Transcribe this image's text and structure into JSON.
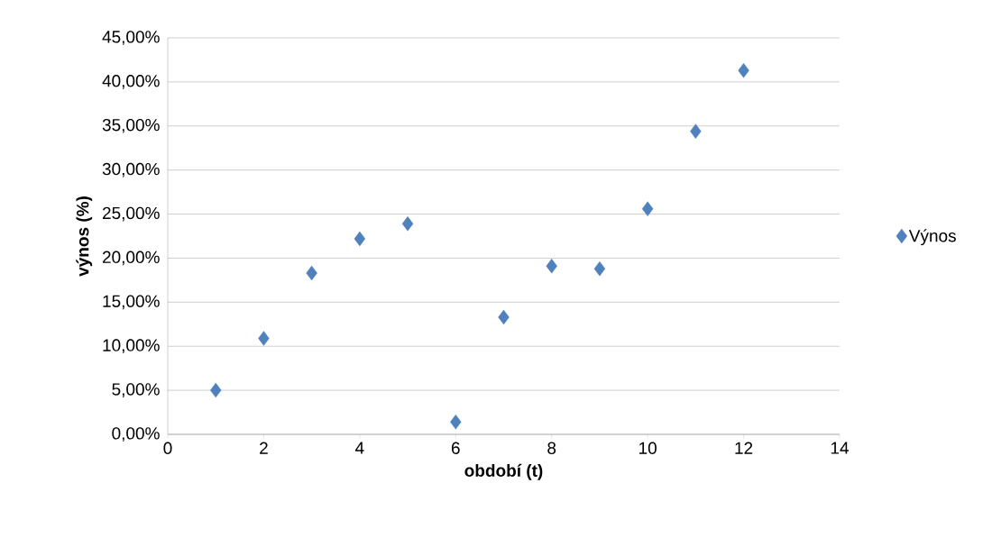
{
  "chart_data": {
    "type": "scatter",
    "xlabel": "období (t)",
    "ylabel": "výnos (%)",
    "x": [
      1,
      2,
      3,
      4,
      5,
      6,
      7,
      8,
      9,
      10,
      11,
      12
    ],
    "series": [
      {
        "name": "Výnos",
        "color": "#4f81bd",
        "values": [
          5.0,
          10.9,
          18.3,
          22.2,
          23.9,
          1.4,
          13.3,
          19.1,
          18.8,
          25.6,
          34.4,
          41.3
        ]
      }
    ],
    "xlim": [
      0,
      14
    ],
    "xticks": [
      0,
      2,
      4,
      6,
      8,
      10,
      12,
      14
    ],
    "ylim": [
      0,
      45
    ],
    "yticks": [
      {
        "value": 0,
        "label": "0,00%"
      },
      {
        "value": 5,
        "label": "5,00%"
      },
      {
        "value": 10,
        "label": "10,00%"
      },
      {
        "value": 15,
        "label": "15,00%"
      },
      {
        "value": 20,
        "label": "20,00%"
      },
      {
        "value": 25,
        "label": "25,00%"
      },
      {
        "value": 30,
        "label": "30,00%"
      },
      {
        "value": 35,
        "label": "35,00%"
      },
      {
        "value": 40,
        "label": "40,00%"
      },
      {
        "value": 45,
        "label": "45,00%"
      }
    ],
    "grid": "y",
    "legend": "right",
    "marker": "diamond"
  }
}
